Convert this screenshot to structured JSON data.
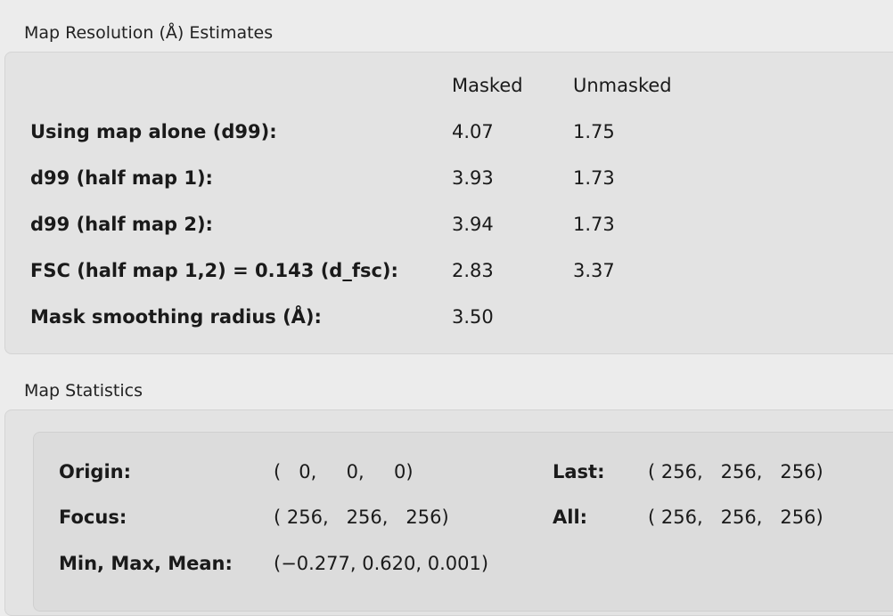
{
  "resolution": {
    "title": "Map Resolution (Å) Estimates",
    "columns": [
      "Masked",
      "Unmasked"
    ],
    "rows": [
      {
        "label": "Using map alone (d99):",
        "masked": "4.07",
        "unmasked": "1.75"
      },
      {
        "label": "d99 (half map 1):",
        "masked": "3.93",
        "unmasked": "1.73"
      },
      {
        "label": "d99 (half map 2):",
        "masked": "3.94",
        "unmasked": "1.73"
      },
      {
        "label": "FSC (half map 1,2) = 0.143 (d_fsc):",
        "masked": "2.83",
        "unmasked": "3.37"
      },
      {
        "label": "Mask smoothing radius (Å):",
        "masked": "3.50",
        "unmasked": ""
      }
    ]
  },
  "statistics": {
    "title": "Map Statistics",
    "origin_label": "Origin:",
    "origin": "(   0,     0,     0)",
    "last_label": "Last:",
    "last": "( 256,   256,   256)",
    "focus_label": "Focus:",
    "focus": "( 256,   256,   256)",
    "all_label": "All:",
    "all": "( 256,   256,   256)",
    "minmax_label": "Min, Max, Mean:",
    "minmax": "(−0.277, 0.620, 0.001)"
  }
}
